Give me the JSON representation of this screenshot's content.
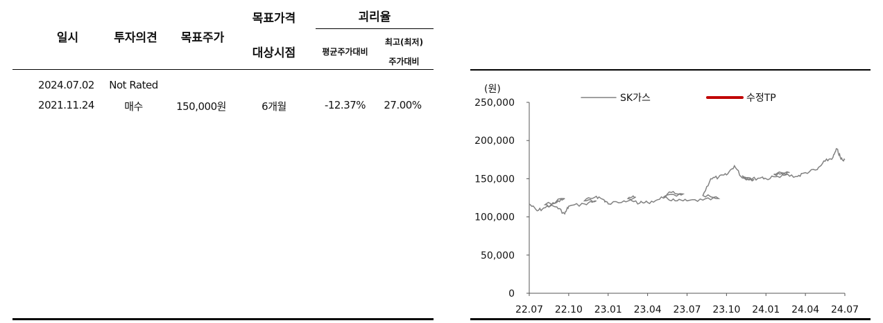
{
  "table": {
    "headers": {
      "date": "일시",
      "opinion": "투자의견",
      "target": "목표주가",
      "horizon_line1": "목표가격",
      "horizon_line2": "대상시점",
      "gap": "괴리율",
      "gap_avg": "평균주가대비",
      "gap_extreme_line1": "최고(최저)",
      "gap_extreme_line2": "주가대비"
    },
    "rows": [
      {
        "date": "2024.07.02",
        "opinion": "Not Rated",
        "target": "",
        "horizon": "",
        "gap_avg": "",
        "gap_extreme": ""
      },
      {
        "date": "2021.11.24",
        "opinion": "매수",
        "target": "150,000원",
        "horizon": "6개월",
        "gap_avg": "-12.37%",
        "gap_extreme": "27.00%"
      }
    ]
  },
  "chart_data": {
    "type": "line",
    "unit_label": "(원)",
    "x_ticks": [
      "22.07",
      "22.10",
      "23.01",
      "23.04",
      "23.07",
      "23.10",
      "24.01",
      "24.04",
      "24.07"
    ],
    "y_ticks": [
      "0",
      "50,000",
      "100,000",
      "150,000",
      "200,000",
      "250,000"
    ],
    "ylim": [
      0,
      250000
    ],
    "legend_position": "top",
    "series": [
      {
        "name": "SK가스",
        "color": "#808080",
        "points": [
          [
            "22.07",
            117000
          ],
          [
            "22.07+0.2",
            108000
          ],
          [
            "22.07+0.4",
            112000
          ],
          [
            "22.07+0.7",
            119000
          ],
          [
            "22.07+0.9",
            124000
          ],
          [
            "22.10-0.6",
            116000
          ],
          [
            "22.10-0.3",
            113000
          ],
          [
            "22.10-0.1",
            104000
          ],
          [
            "22.10",
            114000
          ],
          [
            "22.10+0.4",
            117000
          ],
          [
            "22.10+0.7",
            121000
          ],
          [
            "23.01-0.6",
            121000
          ],
          [
            "23.01-0.3",
            127000
          ],
          [
            "23.01-0.1",
            122000
          ],
          [
            "23.01",
            117000
          ],
          [
            "23.01+0.4",
            121000
          ],
          [
            "23.01+0.7",
            126000
          ],
          [
            "23.04-0.5",
            124000
          ],
          [
            "23.04-0.2",
            118000
          ],
          [
            "23.04",
            119000
          ],
          [
            "23.04+0.3",
            123000
          ],
          [
            "23.04+0.6",
            132000
          ],
          [
            "23.04+0.9",
            130000
          ],
          [
            "23.07-0.6",
            126000
          ],
          [
            "23.07-0.3",
            121000
          ],
          [
            "23.07",
            121000
          ],
          [
            "23.07+0.4",
            122000
          ],
          [
            "23.07+0.8",
            124000
          ],
          [
            "23.10-0.6",
            128000
          ],
          [
            "23.10-0.4",
            150000
          ],
          [
            "23.10-0.2",
            152000
          ],
          [
            "23.10",
            155000
          ],
          [
            "23.10+0.2",
            167000
          ],
          [
            "23.10+0.4",
            151000
          ],
          [
            "23.10+0.7",
            149000
          ],
          [
            "24.01-0.6",
            154000
          ],
          [
            "24.01-0.4",
            149000
          ],
          [
            "24.01-0.1",
            152000
          ],
          [
            "24.01",
            150000
          ],
          [
            "24.01+0.3",
            153000
          ],
          [
            "24.01+0.6",
            158000
          ],
          [
            "24.04-0.8",
            156000
          ],
          [
            "24.04-0.5",
            155000
          ],
          [
            "24.04-0.2",
            153000
          ],
          [
            "24.04",
            158000
          ],
          [
            "24.04+0.3",
            162000
          ],
          [
            "24.04+0.5",
            173000
          ],
          [
            "24.04+0.7",
            178000
          ],
          [
            "24.04+0.8",
            189000
          ],
          [
            "24.04+0.9",
            176000
          ],
          [
            "24.07-0.1",
            176000
          ],
          [
            "24.07",
            175000
          ]
        ]
      },
      {
        "name": "수정TP",
        "color": "#c00000",
        "points": []
      }
    ]
  }
}
